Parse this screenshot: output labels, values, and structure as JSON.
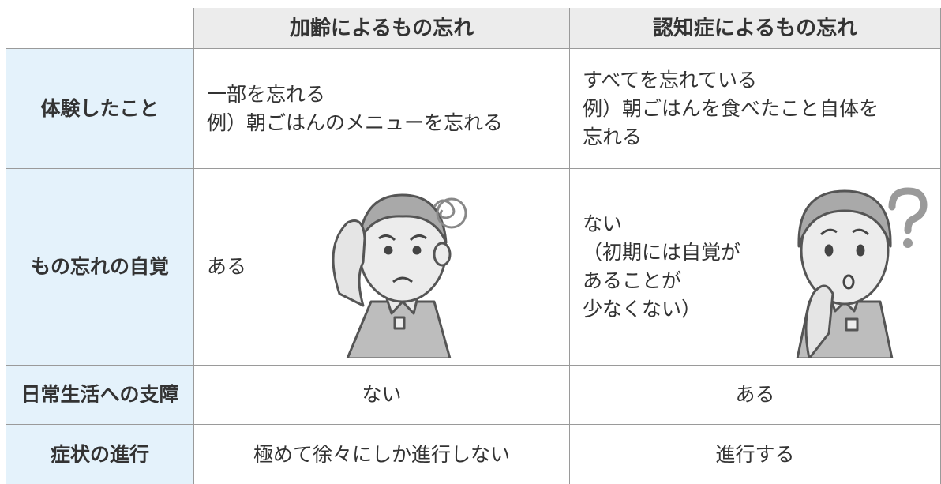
{
  "table": {
    "columns": [
      "加齢によるもの忘れ",
      "認知症によるもの忘れ"
    ],
    "rows": [
      {
        "label": "体験したこと",
        "cells": [
          [
            "一部を忘れる",
            "例）朝ごはんのメニューを忘れる"
          ],
          [
            "すべてを忘れている",
            "例）朝ごはんを食べたこと自体を",
            "忘れる"
          ]
        ]
      },
      {
        "label": "もの忘れの自覚",
        "cells": [
          [
            "ある"
          ],
          [
            "ない",
            "（初期には自覚が",
            "あることが",
            "少なくない）"
          ]
        ]
      },
      {
        "label": "日常生活への支障",
        "cells": [
          [
            "ない"
          ],
          [
            "ある"
          ]
        ]
      },
      {
        "label": "症状の進行",
        "cells": [
          [
            "極めて徐々にしか進行しない"
          ],
          [
            "進行する"
          ]
        ]
      }
    ]
  }
}
